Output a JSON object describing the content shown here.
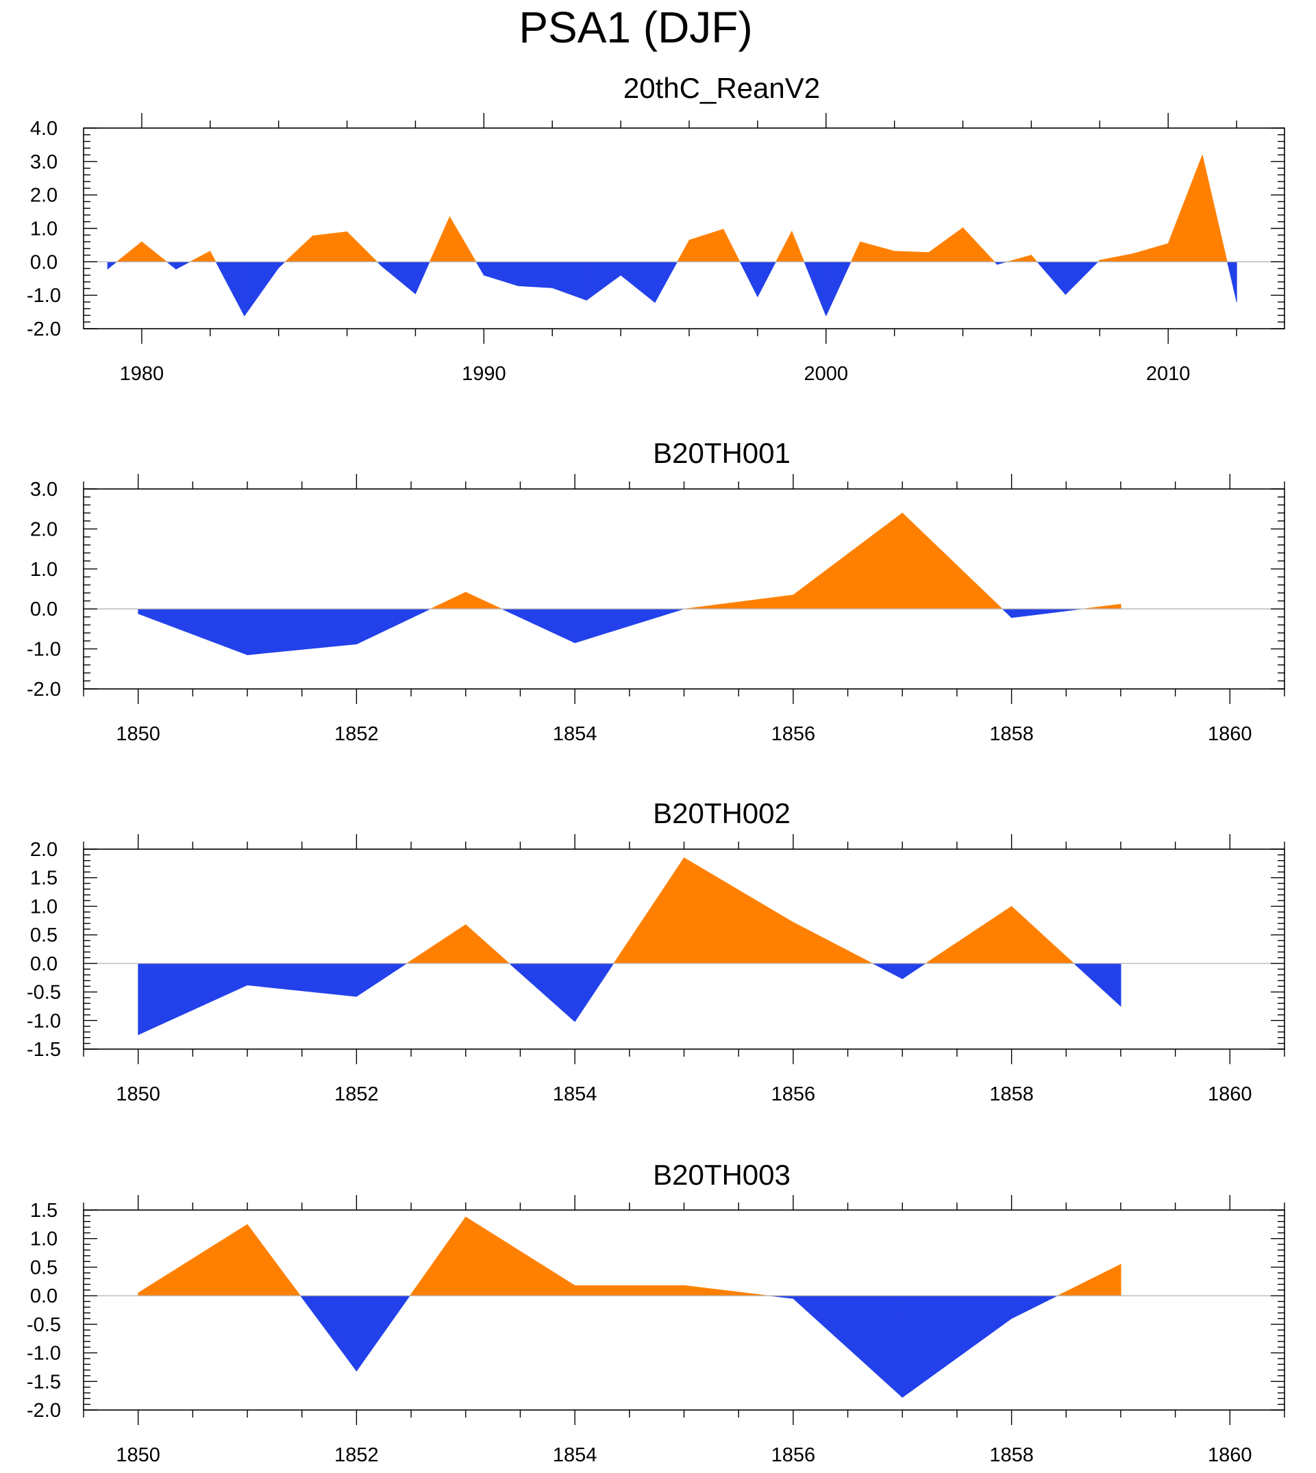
{
  "figure": {
    "title": "PSA1 (DJF)",
    "positive_color": "#ff8000",
    "negative_color": "#2341ea"
  },
  "chart_data": [
    {
      "type": "area",
      "title": "20thC_ReanV2",
      "xlabel": "",
      "ylabel": "",
      "x": [
        1979,
        1980,
        1981,
        1982,
        1983,
        1984,
        1985,
        1986,
        1987,
        1988,
        1989,
        1990,
        1991,
        1992,
        1993,
        1994,
        1995,
        1996,
        1997,
        1998,
        1999,
        2000,
        2001,
        2002,
        2003,
        2004,
        2005,
        2006,
        2007,
        2008,
        2009,
        2010,
        2011,
        2012
      ],
      "values": [
        -0.22,
        0.6,
        -0.22,
        0.32,
        -1.62,
        -0.18,
        0.78,
        0.9,
        -0.12,
        -0.96,
        1.35,
        -0.4,
        -0.72,
        -0.78,
        -1.15,
        -0.4,
        -1.22,
        0.65,
        0.98,
        -1.05,
        0.92,
        -1.62,
        0.6,
        0.32,
        0.28,
        1.02,
        -0.08,
        0.2,
        -0.98,
        0.05,
        0.25,
        0.55,
        3.2,
        -1.2
      ],
      "xlim": [
        1978.3,
        2013.4
      ],
      "ylim": [
        -2.0,
        4.0
      ],
      "xticks": [
        1980,
        1990,
        2000,
        2010
      ],
      "xtick_labels": [
        "1980",
        "1990",
        "2000",
        "2010"
      ],
      "xminor_step": 2,
      "yticks": [
        -2.0,
        -1.0,
        0.0,
        1.0,
        2.0,
        3.0,
        4.0
      ],
      "ytick_labels": [
        "-2.0",
        "-1.0",
        "0.0",
        "1.0",
        "2.0",
        "3.0",
        "4.0"
      ],
      "yminor_step": 0.2
    },
    {
      "type": "area",
      "title": "B20TH001",
      "xlabel": "",
      "ylabel": "",
      "x": [
        1850,
        1851,
        1852,
        1853,
        1854,
        1855,
        1856,
        1857,
        1858,
        1859
      ],
      "values": [
        -0.12,
        -1.15,
        -0.88,
        0.42,
        -0.85,
        0.0,
        0.35,
        2.4,
        -0.22,
        0.12
      ],
      "xlim": [
        1849.5,
        1860.5
      ],
      "ylim": [
        -2.0,
        3.0
      ],
      "xticks": [
        1850,
        1852,
        1854,
        1856,
        1858,
        1860
      ],
      "xtick_labels": [
        "1850",
        "1852",
        "1854",
        "1856",
        "1858",
        "1860"
      ],
      "xminor_step": 0.5,
      "yticks": [
        -2.0,
        -1.0,
        0.0,
        1.0,
        2.0,
        3.0
      ],
      "ytick_labels": [
        "-2.0",
        "-1.0",
        "0.0",
        "1.0",
        "2.0",
        "3.0"
      ],
      "yminor_step": 0.2
    },
    {
      "type": "area",
      "title": "B20TH002",
      "xlabel": "",
      "ylabel": "",
      "x": [
        1850,
        1851,
        1852,
        1853,
        1854,
        1855,
        1856,
        1857,
        1858,
        1859
      ],
      "values": [
        -1.25,
        -0.38,
        -0.58,
        0.68,
        -1.02,
        1.85,
        0.72,
        -0.27,
        1.0,
        -0.75
      ],
      "xlim": [
        1849.5,
        1860.5
      ],
      "ylim": [
        -1.5,
        2.0
      ],
      "xticks": [
        1850,
        1852,
        1854,
        1856,
        1858,
        1860
      ],
      "xtick_labels": [
        "1850",
        "1852",
        "1854",
        "1856",
        "1858",
        "1860"
      ],
      "xminor_step": 0.5,
      "yticks": [
        -1.5,
        -1.0,
        -0.5,
        0.0,
        0.5,
        1.0,
        1.5,
        2.0
      ],
      "ytick_labels": [
        "-1.5",
        "-1.0",
        "-0.5",
        "0.0",
        "0.5",
        "1.0",
        "1.5",
        "2.0"
      ],
      "yminor_step": 0.1
    },
    {
      "type": "area",
      "title": "B20TH003",
      "xlabel": "",
      "ylabel": "",
      "x": [
        1850,
        1851,
        1852,
        1853,
        1854,
        1855,
        1856,
        1857,
        1858,
        1859
      ],
      "values": [
        0.05,
        1.25,
        -1.32,
        1.38,
        0.18,
        0.18,
        -0.05,
        -1.78,
        -0.4,
        0.55
      ],
      "xlim": [
        1849.5,
        1860.5
      ],
      "ylim": [
        -2.0,
        1.5
      ],
      "xticks": [
        1850,
        1852,
        1854,
        1856,
        1858,
        1860
      ],
      "xtick_labels": [
        "1850",
        "1852",
        "1854",
        "1856",
        "1858",
        "1860"
      ],
      "xminor_step": 0.5,
      "yticks": [
        -2.0,
        -1.5,
        -1.0,
        -0.5,
        0.0,
        0.5,
        1.0,
        1.5
      ],
      "ytick_labels": [
        "-2.0",
        "-1.5",
        "-1.0",
        "-0.5",
        "0.0",
        "0.5",
        "1.0",
        "1.5"
      ],
      "yminor_step": 0.1
    }
  ]
}
